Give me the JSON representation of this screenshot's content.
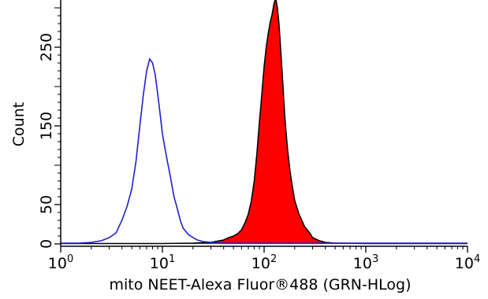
{
  "chart_data": {
    "type": "area",
    "title": "",
    "xlabel": "mito NEET-Alexa Fluor®488 (GRN-HLog)",
    "ylabel": "Count",
    "x_scale": "log",
    "xlim": [
      1,
      10000
    ],
    "ylim": [
      0,
      320
    ],
    "x_ticks": [
      {
        "value": 1,
        "base": "10",
        "exp": "0"
      },
      {
        "value": 10,
        "base": "10",
        "exp": "1"
      },
      {
        "value": 100,
        "base": "10",
        "exp": "2"
      },
      {
        "value": 1000,
        "base": "10",
        "exp": "3"
      },
      {
        "value": 10000,
        "base": "10",
        "exp": "4"
      }
    ],
    "y_ticks": [
      {
        "value": 0,
        "label": "0"
      },
      {
        "value": 50,
        "label": "50"
      },
      {
        "value": 150,
        "label": "150"
      },
      {
        "value": 250,
        "label": "250"
      }
    ],
    "y_minor_ticks": [
      100,
      200
    ],
    "grid": false,
    "legend": "none",
    "series": [
      {
        "style": "filled",
        "fill_color": "#ff0000",
        "line_color": "#000000",
        "points": [
          [
            1,
            0.5
          ],
          [
            5,
            0.5
          ],
          [
            10,
            0.5
          ],
          [
            20,
            1
          ],
          [
            30,
            2
          ],
          [
            40,
            5
          ],
          [
            45,
            8
          ],
          [
            50,
            10
          ],
          [
            55,
            13
          ],
          [
            60,
            18
          ],
          [
            65,
            27
          ],
          [
            70,
            38
          ],
          [
            75,
            55
          ],
          [
            80,
            80
          ],
          [
            85,
            115
          ],
          [
            90,
            155
          ],
          [
            95,
            190
          ],
          [
            100,
            225
          ],
          [
            105,
            250
          ],
          [
            110,
            268
          ],
          [
            115,
            282
          ],
          [
            120,
            292
          ],
          [
            125,
            305
          ],
          [
            130,
            312
          ],
          [
            135,
            300
          ],
          [
            140,
            280
          ],
          [
            145,
            250
          ],
          [
            150,
            220
          ],
          [
            155,
            190
          ],
          [
            160,
            160
          ],
          [
            170,
            120
          ],
          [
            180,
            92
          ],
          [
            190,
            72
          ],
          [
            200,
            55
          ],
          [
            220,
            38
          ],
          [
            250,
            22
          ],
          [
            280,
            14
          ],
          [
            300,
            8
          ],
          [
            350,
            4
          ],
          [
            400,
            2
          ],
          [
            500,
            1
          ],
          [
            1000,
            0.5
          ],
          [
            10000,
            0.5
          ]
        ]
      },
      {
        "style": "line",
        "line_color": "#1f1fd0",
        "points": [
          [
            1,
            1
          ],
          [
            1.5,
            1
          ],
          [
            2,
            2
          ],
          [
            2.5,
            4
          ],
          [
            3,
            8
          ],
          [
            3.5,
            14
          ],
          [
            4,
            30
          ],
          [
            4.5,
            48
          ],
          [
            5,
            70
          ],
          [
            5.5,
            105
          ],
          [
            6,
            150
          ],
          [
            6.5,
            190
          ],
          [
            7,
            220
          ],
          [
            7.5,
            235
          ],
          [
            8,
            230
          ],
          [
            8.5,
            215
          ],
          [
            9,
            190
          ],
          [
            9.5,
            165
          ],
          [
            10,
            140
          ],
          [
            11,
            110
          ],
          [
            12,
            85
          ],
          [
            13,
            60
          ],
          [
            14,
            45
          ],
          [
            15,
            30
          ],
          [
            16,
            20
          ],
          [
            18,
            12
          ],
          [
            20,
            8
          ],
          [
            22,
            5
          ],
          [
            25,
            3
          ],
          [
            30,
            2
          ],
          [
            40,
            1
          ],
          [
            100,
            1
          ],
          [
            1000,
            1
          ],
          [
            10000,
            1
          ]
        ]
      }
    ]
  }
}
